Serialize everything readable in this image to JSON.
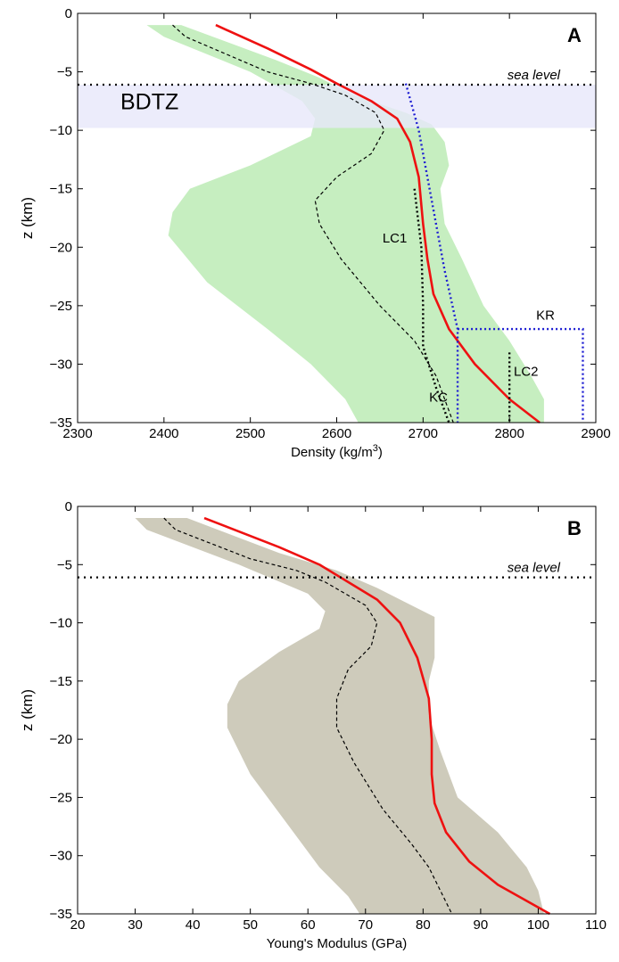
{
  "colors": {
    "green_band": "#c6eec0",
    "gray_band": "#cecbbb",
    "bdtz_band": "#e7e7fa",
    "red_line": "#ee1111",
    "blue_dotted": "#1e1ed2",
    "black": "#000000"
  },
  "chart_data": [
    {
      "type": "line",
      "panel_label": "A",
      "xlabel": "Density (kg/m",
      "xlabel_sup": "3",
      "xlabel_end": ")",
      "ylabel": "z (km)",
      "xlim": [
        2300,
        2900
      ],
      "ylim": [
        -35,
        0
      ],
      "x_ticks": [
        2300,
        2400,
        2500,
        2600,
        2700,
        2800,
        2900
      ],
      "y_ticks": [
        0,
        -5,
        -10,
        -15,
        -20,
        -25,
        -30,
        -35
      ],
      "annotations": {
        "sea_level": "sea level",
        "bdtz": "BDTZ",
        "lc1": "LC1",
        "lc2": "LC2",
        "kc": "KC",
        "kr": "KR"
      },
      "sea_level_z": -6.1,
      "bdtz_range": [
        -9.8,
        -6.1
      ],
      "band": {
        "left": [
          [
            2380,
            -1
          ],
          [
            2400,
            -2
          ],
          [
            2500,
            -5
          ],
          [
            2560,
            -7.5
          ],
          [
            2575,
            -9
          ],
          [
            2570,
            -10.5
          ],
          [
            2500,
            -13
          ],
          [
            2430,
            -15
          ],
          [
            2410,
            -17
          ],
          [
            2405,
            -19
          ],
          [
            2450,
            -23
          ],
          [
            2520,
            -27
          ],
          [
            2570,
            -30
          ],
          [
            2610,
            -33
          ],
          [
            2625,
            -35
          ]
        ],
        "right": [
          [
            2420,
            -1
          ],
          [
            2530,
            -4
          ],
          [
            2580,
            -5.5
          ],
          [
            2620,
            -7
          ],
          [
            2680,
            -8.5
          ],
          [
            2710,
            -9.5
          ],
          [
            2725,
            -11
          ],
          [
            2730,
            -13
          ],
          [
            2720,
            -15
          ],
          [
            2725,
            -18
          ],
          [
            2745,
            -21
          ],
          [
            2770,
            -25
          ],
          [
            2800,
            -28
          ],
          [
            2825,
            -31
          ],
          [
            2840,
            -33
          ],
          [
            2840,
            -35
          ]
        ]
      },
      "series": [
        {
          "style": "solid-red",
          "points": [
            [
              2460,
              -1
            ],
            [
              2520,
              -3
            ],
            [
              2570,
              -4.8
            ],
            [
              2600,
              -6
            ],
            [
              2640,
              -7.5
            ],
            [
              2670,
              -9
            ],
            [
              2685,
              -11
            ],
            [
              2695,
              -14
            ],
            [
              2700,
              -18
            ],
            [
              2705,
              -21
            ],
            [
              2712,
              -24
            ],
            [
              2730,
              -27
            ],
            [
              2760,
              -30
            ],
            [
              2800,
              -33
            ],
            [
              2835,
              -35
            ]
          ]
        },
        {
          "style": "dashed-black",
          "points": [
            [
              2410,
              -1
            ],
            [
              2425,
              -2
            ],
            [
              2520,
              -5
            ],
            [
              2570,
              -6
            ],
            [
              2610,
              -7
            ],
            [
              2645,
              -8.5
            ],
            [
              2655,
              -10
            ],
            [
              2640,
              -12
            ],
            [
              2600,
              -14
            ],
            [
              2575,
              -16
            ],
            [
              2580,
              -18
            ],
            [
              2605,
              -21
            ],
            [
              2650,
              -25
            ],
            [
              2690,
              -28
            ],
            [
              2715,
              -31
            ],
            [
              2735,
              -35
            ]
          ]
        },
        {
          "style": "dotted-blue",
          "points": [
            [
              2680,
              -6
            ],
            [
              2695,
              -10
            ],
            [
              2705,
              -14
            ],
            [
              2715,
              -18
            ],
            [
              2725,
              -22
            ],
            [
              2740,
              -27
            ],
            [
              2740,
              -35
            ]
          ]
        },
        {
          "style": "dotted-blue",
          "points": [
            [
              2740,
              -27
            ],
            [
              2885,
              -27
            ],
            [
              2885,
              -35
            ]
          ]
        },
        {
          "style": "dotted-black",
          "points": [
            [
              2690,
              -15
            ],
            [
              2698,
              -20
            ],
            [
              2700,
              -25
            ],
            [
              2700,
              -28.5
            ],
            [
              2715,
              -32
            ],
            [
              2730,
              -35
            ]
          ]
        },
        {
          "style": "dotted-black",
          "points": [
            [
              2800,
              -29
            ],
            [
              2800,
              -35
            ]
          ]
        }
      ]
    },
    {
      "type": "line",
      "panel_label": "B",
      "xlabel": "Young's Modulus (GPa)",
      "ylabel": "z (km)",
      "xlim": [
        20,
        110
      ],
      "ylim": [
        -35,
        0
      ],
      "x_ticks": [
        20,
        30,
        40,
        50,
        60,
        70,
        80,
        90,
        100,
        110
      ],
      "y_ticks": [
        0,
        -5,
        -10,
        -15,
        -20,
        -25,
        -30,
        -35
      ],
      "annotations": {
        "sea_level": "sea level"
      },
      "sea_level_z": -6.1,
      "band": {
        "left": [
          [
            30,
            -1
          ],
          [
            32,
            -2
          ],
          [
            48,
            -5
          ],
          [
            60,
            -7.5
          ],
          [
            63,
            -9
          ],
          [
            62,
            -10.5
          ],
          [
            55,
            -12.5
          ],
          [
            48,
            -15
          ],
          [
            46,
            -17
          ],
          [
            46,
            -19
          ],
          [
            50,
            -23
          ],
          [
            56,
            -27
          ],
          [
            62,
            -31
          ],
          [
            67,
            -33.5
          ],
          [
            69,
            -35
          ]
        ],
        "right": [
          [
            39,
            -1
          ],
          [
            55,
            -4
          ],
          [
            65,
            -5.5
          ],
          [
            72,
            -7
          ],
          [
            78,
            -8.5
          ],
          [
            82,
            -9.5
          ],
          [
            82,
            -11
          ],
          [
            82,
            -13
          ],
          [
            81,
            -15
          ],
          [
            81,
            -18
          ],
          [
            83,
            -21
          ],
          [
            86,
            -25
          ],
          [
            93,
            -28
          ],
          [
            98,
            -31
          ],
          [
            100,
            -33
          ],
          [
            101,
            -35
          ]
        ]
      },
      "series": [
        {
          "style": "solid-red",
          "points": [
            [
              42,
              -1
            ],
            [
              55,
              -3.5
            ],
            [
              62,
              -5
            ],
            [
              67,
              -6.5
            ],
            [
              72,
              -8
            ],
            [
              76,
              -10
            ],
            [
              79,
              -13
            ],
            [
              81,
              -16.5
            ],
            [
              81.5,
              -20
            ],
            [
              81.5,
              -23
            ],
            [
              82,
              -25.5
            ],
            [
              84,
              -28
            ],
            [
              88,
              -30.5
            ],
            [
              93,
              -32.5
            ],
            [
              102,
              -35
            ]
          ]
        },
        {
          "style": "dashed-black",
          "points": [
            [
              35,
              -1
            ],
            [
              37,
              -2
            ],
            [
              50,
              -4.5
            ],
            [
              58,
              -5.5
            ],
            [
              63,
              -6.5
            ],
            [
              70,
              -8.5
            ],
            [
              72,
              -10
            ],
            [
              71,
              -12
            ],
            [
              67,
              -14
            ],
            [
              65,
              -16.5
            ],
            [
              65,
              -19
            ],
            [
              68,
              -22
            ],
            [
              73,
              -26
            ],
            [
              78,
              -29
            ],
            [
              81,
              -31
            ],
            [
              83,
              -33
            ],
            [
              85,
              -35
            ]
          ]
        }
      ]
    }
  ]
}
